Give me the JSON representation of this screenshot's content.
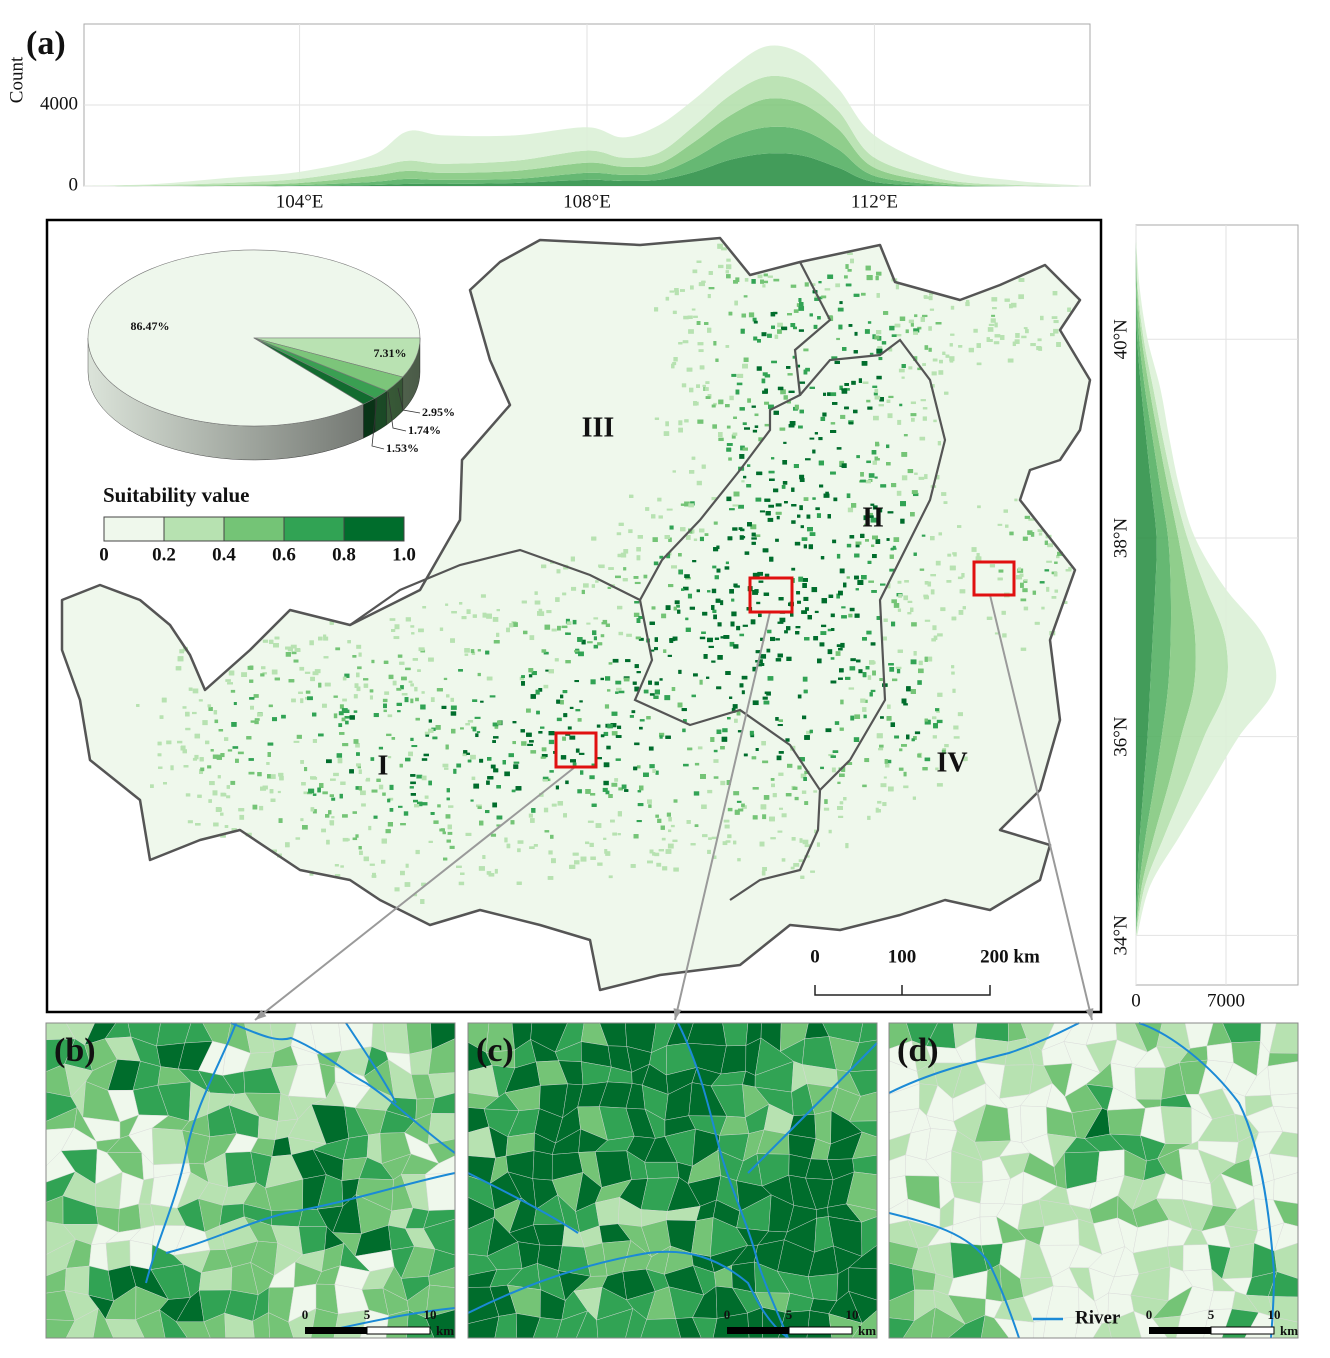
{
  "chart_data": [
    {
      "type": "area",
      "panel_label": "(a)",
      "ylabel": "Count",
      "stacked": true,
      "grid": true,
      "x": [
        101,
        102,
        103,
        104,
        105,
        105.5,
        106,
        107,
        108,
        108.5,
        109,
        109.5,
        110,
        110.5,
        111,
        111.5,
        112,
        113,
        114,
        115
      ],
      "series": [
        {
          "color": "#2f9148",
          "values": [
            0,
            0,
            0,
            0,
            50,
            100,
            100,
            150,
            300,
            250,
            300,
            700,
            1300,
            1600,
            1500,
            900,
            200,
            0,
            0,
            0
          ]
        },
        {
          "color": "#55b064",
          "values": [
            0,
            0,
            0,
            50,
            150,
            250,
            200,
            200,
            350,
            300,
            350,
            700,
            1100,
            1300,
            1250,
            900,
            300,
            50,
            0,
            0
          ]
        },
        {
          "color": "#84c97f",
          "values": [
            0,
            0,
            50,
            100,
            300,
            400,
            350,
            400,
            500,
            400,
            450,
            800,
            1100,
            1400,
            1300,
            1000,
            400,
            100,
            0,
            0
          ]
        },
        {
          "color": "#b5e0ad",
          "values": [
            0,
            50,
            100,
            200,
            400,
            500,
            450,
            500,
            600,
            450,
            550,
            800,
            1000,
            1100,
            1050,
            900,
            500,
            150,
            50,
            0
          ]
        },
        {
          "color": "#dcf1d7",
          "values": [
            0,
            50,
            250,
            350,
            600,
            1450,
            1400,
            1250,
            1150,
            1000,
            1350,
            1300,
            1300,
            1500,
            1400,
            1100,
            1100,
            500,
            200,
            0
          ]
        }
      ],
      "xlim": [
        101,
        115
      ],
      "xticks": [
        {
          "value": 104,
          "label": "104°E"
        },
        {
          "value": 108,
          "label": "108°E"
        },
        {
          "value": 112,
          "label": "112°E"
        }
      ],
      "ylim": [
        0,
        8000
      ],
      "yticks": [
        0,
        4000
      ]
    },
    {
      "type": "area",
      "orientation": "horizontal",
      "stacked": true,
      "grid": true,
      "y": [
        34,
        34.5,
        35,
        35.5,
        36,
        36.5,
        37,
        37.5,
        38,
        38.5,
        39,
        39.5,
        40,
        40.5,
        41
      ],
      "series": [
        {
          "color": "#2f9148",
          "values": [
            0,
            100,
            300,
            600,
            900,
            1100,
            1300,
            1500,
            1600,
            1200,
            800,
            400,
            100,
            0,
            0
          ]
        },
        {
          "color": "#55b064",
          "values": [
            0,
            150,
            450,
            800,
            1100,
            1400,
            1400,
            1200,
            900,
            700,
            500,
            300,
            150,
            50,
            0
          ]
        },
        {
          "color": "#84c97f",
          "values": [
            0,
            200,
            650,
            1100,
            1500,
            2000,
            1900,
            1300,
            800,
            600,
            450,
            350,
            200,
            50,
            0
          ]
        },
        {
          "color": "#b5e0ad",
          "values": [
            0,
            250,
            800,
            1300,
            1800,
            2500,
            2300,
            1400,
            700,
            450,
            350,
            300,
            150,
            50,
            0
          ]
        },
        {
          "color": "#dcf1d7",
          "values": [
            100,
            400,
            1200,
            1900,
            2700,
            3800,
            3100,
            1500,
            600,
            450,
            500,
            550,
            300,
            150,
            0
          ]
        }
      ],
      "ylim": [
        33.5,
        41.15
      ],
      "yticks": [
        {
          "value": 34,
          "label": "34°N"
        },
        {
          "value": 36,
          "label": "36°N"
        },
        {
          "value": 38,
          "label": "38°N"
        },
        {
          "value": 40,
          "label": "40°N"
        }
      ],
      "xlim": [
        0,
        12600
      ],
      "xticks": [
        0,
        7000
      ]
    },
    {
      "type": "pie",
      "values": [
        86.47,
        7.31,
        2.95,
        1.74,
        1.53
      ],
      "value_labels": [
        "86.47%",
        "7.31%",
        "2.95%",
        "1.74%",
        "1.53%"
      ],
      "colors": [
        "#eef7ec",
        "#b9e2b2",
        "#7cc57a",
        "#3a9f52",
        "#126b2f"
      ]
    }
  ],
  "map": {
    "legend": {
      "title": "Suitability value",
      "colors": [
        "#eff8ec",
        "#b7e2b1",
        "#74c476",
        "#31a354",
        "#006d2c"
      ],
      "ticks": [
        "0",
        "0.2",
        "0.4",
        "0.6",
        "0.8",
        "1.0"
      ]
    },
    "regions": [
      "I",
      "II",
      "III",
      "IV"
    ],
    "scale_bar": [
      "0",
      "100",
      "200 km"
    ]
  },
  "insets": [
    {
      "label": "(b)",
      "scale_bar": [
        "0",
        "5",
        "10",
        "km"
      ]
    },
    {
      "label": "(c)",
      "scale_bar": [
        "0",
        "5",
        "10",
        "km"
      ]
    },
    {
      "label": "(d)",
      "scale_bar": [
        "0",
        "5",
        "10",
        "km"
      ],
      "river_label": "River"
    }
  ]
}
